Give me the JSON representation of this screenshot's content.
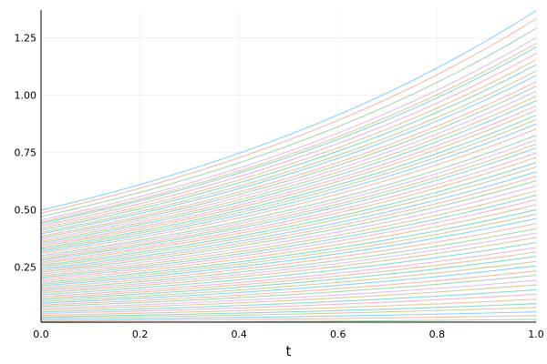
{
  "chart_data": {
    "type": "line",
    "xlabel": "t",
    "ylabel": "",
    "xlim": [
      0.0,
      1.0
    ],
    "ylim": [
      0.01,
      1.37
    ],
    "grid": true,
    "legend": "none",
    "xticks": [
      "0.0",
      "0.2",
      "0.4",
      "0.6",
      "0.8",
      "1.0"
    ],
    "yticks": [
      "0.25",
      "0.50",
      "0.75",
      "1.00",
      "1.25"
    ],
    "growth_rate": 1.01,
    "palette": [
      "#009AFA",
      "#E36F47",
      "#3EA44E",
      "#C371D2",
      "#AC8E18",
      "#00AAAE",
      "#ED5E93",
      "#C68225",
      "#00A98D",
      "#8E971E"
    ],
    "x": [
      0.0,
      0.05,
      0.1,
      0.15,
      0.2,
      0.25,
      0.3,
      0.35,
      0.4,
      0.45,
      0.5,
      0.55,
      0.6,
      0.65,
      0.7,
      0.75,
      0.8,
      0.85,
      0.9,
      0.95,
      1.0
    ],
    "initial_values": [
      0.498,
      0.485,
      0.47,
      0.455,
      0.446,
      0.44,
      0.43,
      0.42,
      0.412,
      0.402,
      0.395,
      0.385,
      0.378,
      0.37,
      0.362,
      0.355,
      0.347,
      0.34,
      0.332,
      0.325,
      0.318,
      0.31,
      0.3,
      0.293,
      0.286,
      0.28,
      0.272,
      0.265,
      0.257,
      0.25,
      0.242,
      0.235,
      0.228,
      0.22,
      0.212,
      0.205,
      0.198,
      0.19,
      0.182,
      0.175,
      0.168,
      0.16,
      0.152,
      0.145,
      0.138,
      0.13,
      0.122,
      0.115,
      0.108,
      0.1,
      0.093,
      0.085,
      0.078,
      0.07,
      0.063,
      0.055,
      0.048,
      0.04,
      0.033,
      0.027,
      0.02,
      0.014,
      0.008
    ]
  }
}
